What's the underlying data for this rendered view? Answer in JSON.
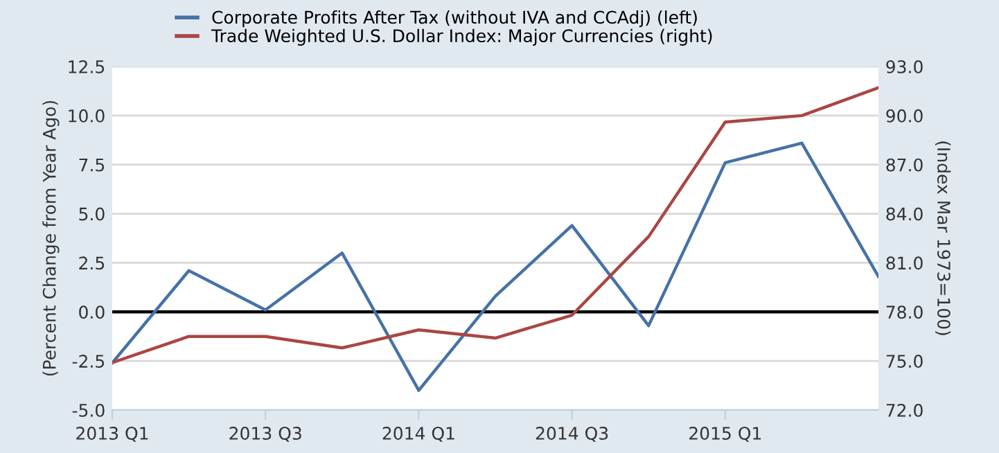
{
  "chart_data": {
    "type": "line",
    "ylabel": "(Percent Change from Year Ago)",
    "y2label": "(Index Mar 1973=100)",
    "categories": [
      "2013 Q1",
      null,
      "2013 Q3",
      null,
      "2014 Q1",
      null,
      "2014 Q3",
      null,
      "2015 Q1",
      null,
      null
    ],
    "series": [
      {
        "name": "Corporate Profits After Tax (without IVA and CCAdj) (left)",
        "color": "#4572a7",
        "values": [
          -2.6,
          2.1,
          0.1,
          3.0,
          -4.0,
          0.8,
          4.4,
          -0.7,
          7.6,
          8.6,
          1.8
        ]
      },
      {
        "name": "Trade Weighted U.S. Dollar Index: Major Currencies (right)",
        "color": "#aa4643",
        "axis": "y2",
        "values": [
          74.9,
          76.5,
          76.5,
          75.8,
          76.9,
          76.4,
          77.8,
          82.6,
          89.6,
          90.0,
          91.7
        ]
      }
    ],
    "ylim": [
      -5.0,
      12.5
    ],
    "yticks": [
      {
        "value": -5.0,
        "label": "-5.0"
      },
      {
        "value": -2.5,
        "label": "-2.5"
      },
      {
        "value": 0,
        "label": "0.0"
      },
      {
        "value": 2.5,
        "label": "2.5"
      },
      {
        "value": 5.0,
        "label": "5.0"
      },
      {
        "value": 7.5,
        "label": "7.5"
      },
      {
        "value": 10.0,
        "label": "10.0"
      },
      {
        "value": 12.5,
        "label": "12.5"
      }
    ],
    "y2lim": [
      72.0,
      93.0
    ],
    "y2ticks": [
      {
        "value": 72,
        "label": "72.0"
      },
      {
        "value": 75,
        "label": "75.0"
      },
      {
        "value": 78,
        "label": "78.0"
      },
      {
        "value": 81,
        "label": "81.0"
      },
      {
        "value": 84,
        "label": "84.0"
      },
      {
        "value": 87,
        "label": "87.0"
      },
      {
        "value": 90,
        "label": "90.0"
      },
      {
        "value": 93,
        "label": "93.0"
      }
    ],
    "ref_lines": [
      {
        "axis": "y",
        "value": 0,
        "color": "#000000"
      }
    ],
    "grid": "y",
    "legend": "top",
    "marker": "none",
    "line_style": "solid"
  }
}
